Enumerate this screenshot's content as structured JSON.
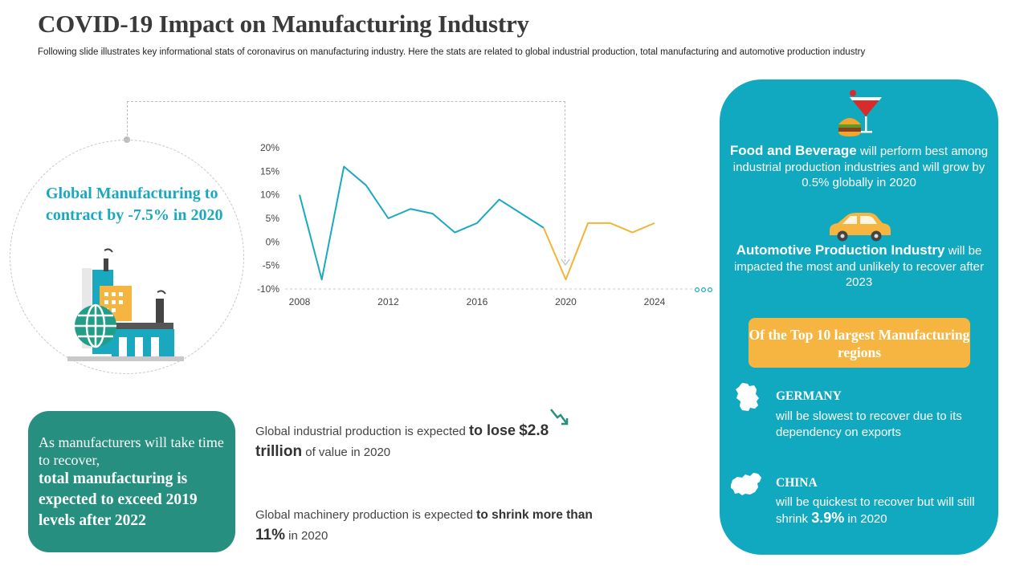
{
  "header": {
    "title": "COVID-19 Impact on Manufacturing Industry",
    "subtitle": "Following slide illustrates key informational stats of coronavirus on manufacturing industry. Here the stats are related to global industrial production, total manufacturing and automotive production industry"
  },
  "circle": {
    "text": "Global Manufacturing to contract by -7.5% in 2020"
  },
  "chart_data": {
    "type": "line",
    "title": "",
    "xlabel": "",
    "ylabel": "",
    "x_ticks": [
      "2008",
      "2012",
      "2016",
      "2020",
      "2024"
    ],
    "y_ticks": [
      "20%",
      "15%",
      "10%",
      "5%",
      "0%",
      "-5%",
      "-10%"
    ],
    "ylim": [
      -10,
      20
    ],
    "xlim": [
      2008,
      2024
    ],
    "grid": false,
    "series": [
      {
        "color": "#1ba8c0",
        "x": [
          2008,
          2009,
          2010,
          2011,
          2012,
          2013,
          2014,
          2015,
          2016,
          2017,
          2018,
          2019
        ],
        "y": [
          10,
          -8,
          16,
          12,
          5,
          7,
          6,
          2,
          4,
          9,
          6,
          3
        ]
      },
      {
        "color": "#f3b339",
        "x": [
          2019,
          2020,
          2021,
          2022,
          2023,
          2024
        ],
        "y": [
          3,
          -8,
          4,
          4,
          2,
          4
        ]
      }
    ]
  },
  "green_box": {
    "line1": "As manufacturers will take time to recover,",
    "line2": "total manufacturing is expected to exceed 2019 levels after 2022"
  },
  "stats": {
    "industrial": {
      "pre": "Global industrial production is expected",
      "em1": "to lose",
      "em2": "$2.8 trillion",
      "post": "of value in 2020"
    },
    "machinery": {
      "pre": "Global machinery production is expected",
      "em": "to shrink more than",
      "big": "11%",
      "post": "in 2020"
    }
  },
  "panel": {
    "food": {
      "head": "Food and Beverage",
      "text": "will perform best among industrial production industries and will grow by 0.5% globally in 2020"
    },
    "auto": {
      "head": "Automotive Production Industry",
      "text": "will be impacted the most and unlikely to recover after 2023"
    },
    "banner": "Of the Top 10 largest Manufacturing regions",
    "germany": {
      "name": "GERMANY",
      "text": "will be slowest to recover due to its dependency on exports"
    },
    "china": {
      "name": "CHINA",
      "pre": "will be  quickest to recover but will still shrink",
      "big": "3.9%",
      "post": "in 2020"
    }
  }
}
